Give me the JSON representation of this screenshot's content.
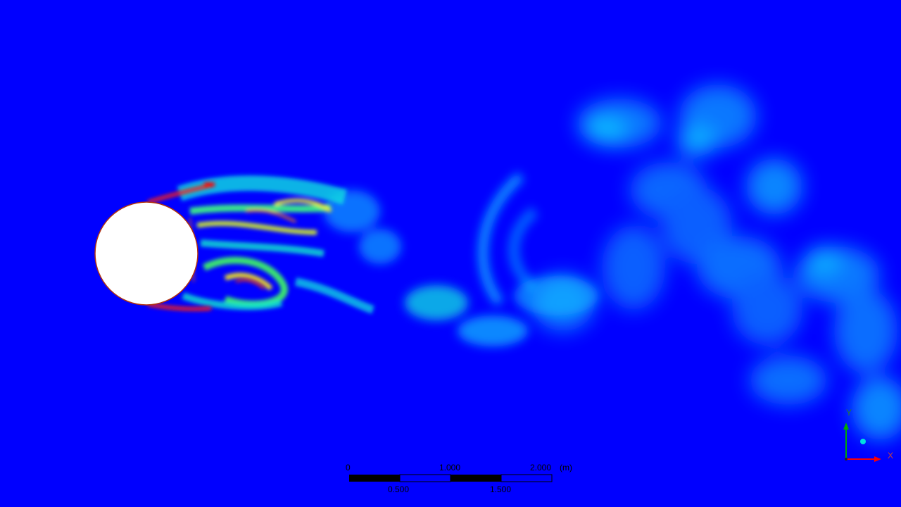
{
  "colors": {
    "background": "#0000ff",
    "cylinder": "#ffffff",
    "cylinder_edge": "#b03010",
    "scale_dark": "#000000",
    "scale_light": "#0000ff",
    "x_axis": "#ff0000",
    "y_axis": "#00aa00",
    "z_axis": "#00e0e0"
  },
  "scale_bar": {
    "top_labels": [
      "0",
      "1.000",
      "2.000"
    ],
    "unit": "(m)",
    "bottom_labels": [
      "0.500",
      "1.500"
    ]
  },
  "axes": {
    "x_label": "X",
    "y_label": "Y",
    "z_icon": "z-axis-sphere-icon"
  },
  "field_description_icons": {
    "cylinder": "cylinder-obstacle",
    "wake": "vortex-wake"
  }
}
